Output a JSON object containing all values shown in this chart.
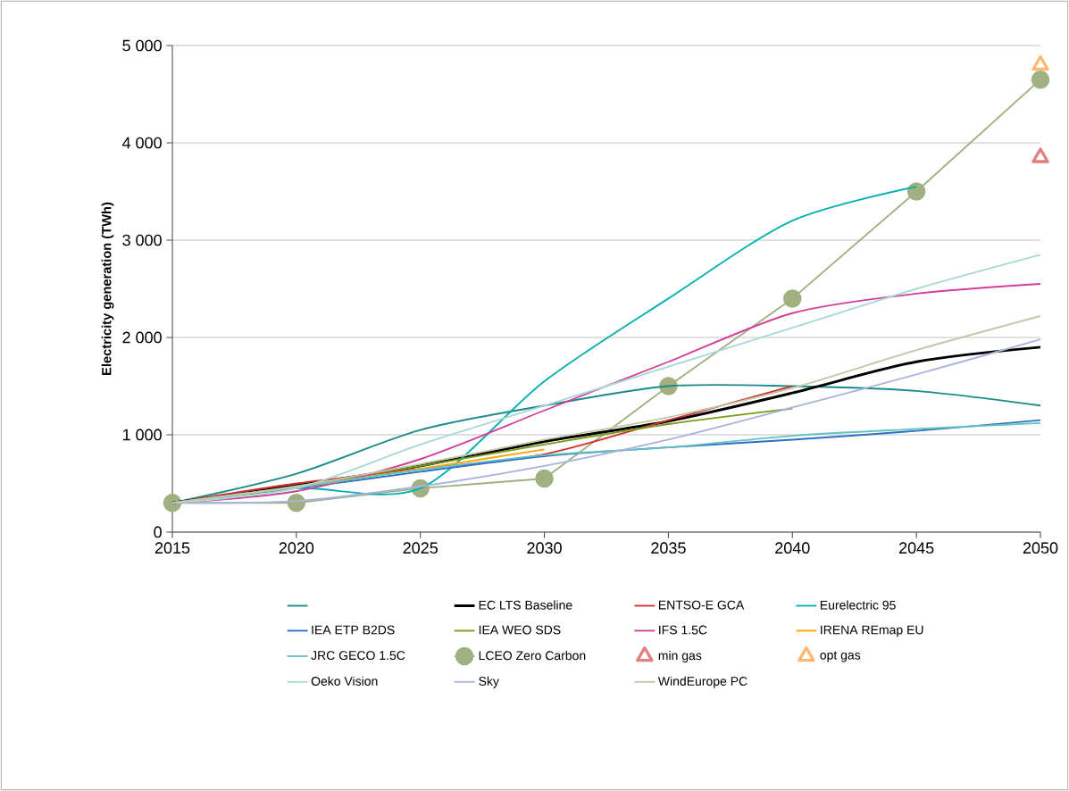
{
  "chart_data": {
    "type": "line",
    "ylabel": "Electricity generation (TWh)",
    "x": [
      2015,
      2020,
      2025,
      2030,
      2035,
      2040,
      2045,
      2050
    ],
    "xlim": [
      2015,
      2050
    ],
    "xticks": [
      2015,
      2020,
      2025,
      2030,
      2035,
      2040,
      2045,
      2050
    ],
    "ylim": [
      0,
      5000
    ],
    "yticks": [
      0,
      {
        "value": 1000,
        "label": "1 000"
      },
      {
        "value": 2000,
        "label": "2 000"
      },
      {
        "value": 3000,
        "label": "3 000"
      },
      {
        "value": 4000,
        "label": "4 000"
      },
      {
        "value": 5000,
        "label": "5 000"
      }
    ],
    "grid": "y",
    "legend": "bottom",
    "marker": "none",
    "line_style": "solid",
    "series": [
      {
        "color": "#1a8a8a",
        "values": [
          300,
          600,
          1050,
          1300,
          1500,
          1500,
          1450,
          1300
        ]
      },
      {
        "name": "EC LTS Baseline",
        "color": "#000000",
        "values": [
          300,
          480,
          680,
          930,
          1140,
          1430,
          1750,
          1900
        ]
      },
      {
        "name": "ENTSO-E GCA",
        "color": "#d03030",
        "values": [
          300,
          500,
          650,
          800,
          1150,
          1500,
          null,
          null
        ]
      },
      {
        "name": "Eurelectric 95",
        "color": "#00b0b0",
        "values": [
          300,
          450,
          450,
          1550,
          2400,
          3200,
          3550,
          null
        ]
      },
      {
        "name": "IEA ETP B2DS",
        "color": "#2e6fc6",
        "values": [
          300,
          450,
          620,
          780,
          870,
          950,
          1040,
          1150
        ]
      },
      {
        "name": "IEA WEO SDS",
        "color": "#7a9a1a",
        "values": [
          300,
          470,
          680,
          900,
          1110,
          1270,
          null,
          null
        ]
      },
      {
        "name": "IFS 1.5C",
        "color": "#d0409a",
        "values": [
          300,
          420,
          750,
          1250,
          1750,
          2250,
          2450,
          2550
        ]
      },
      {
        "name": "IRENA REmap EU",
        "color": "#ffa500",
        "values": [
          300,
          460,
          650,
          850,
          null,
          null,
          null,
          null
        ]
      },
      {
        "name": "JRC GECO 1.5C",
        "color": "#66c2c2",
        "values": [
          300,
          460,
          640,
          790,
          870,
          990,
          1060,
          1120
        ]
      },
      {
        "name": "LCEO Zero Carbon",
        "color": "#a0b080",
        "marker": "circle",
        "values": [
          300,
          300,
          450,
          550,
          1500,
          2400,
          3500,
          4650
        ]
      },
      {
        "name": "min gas",
        "type": "scatter",
        "color": "#e08080",
        "marker": "triangle",
        "x": [
          2050
        ],
        "values": [
          3850
        ]
      },
      {
        "name": "opt gas",
        "type": "scatter",
        "color": "#ffb870",
        "marker": "triangle",
        "x": [
          2050
        ],
        "values": [
          4800
        ]
      },
      {
        "name": "Oeko Vision",
        "color": "#a8d8d8",
        "values": [
          300,
          450,
          900,
          1300,
          1700,
          2100,
          2500,
          2850
        ]
      },
      {
        "name": "Sky",
        "color": "#a8b4dc",
        "values": [
          300,
          320,
          470,
          680,
          950,
          1280,
          1620,
          1980
        ]
      },
      {
        "name": "WindEurope PC",
        "color": "#c4c8a8",
        "values": [
          300,
          470,
          700,
          950,
          1180,
          1480,
          1870,
          2220
        ]
      }
    ]
  }
}
